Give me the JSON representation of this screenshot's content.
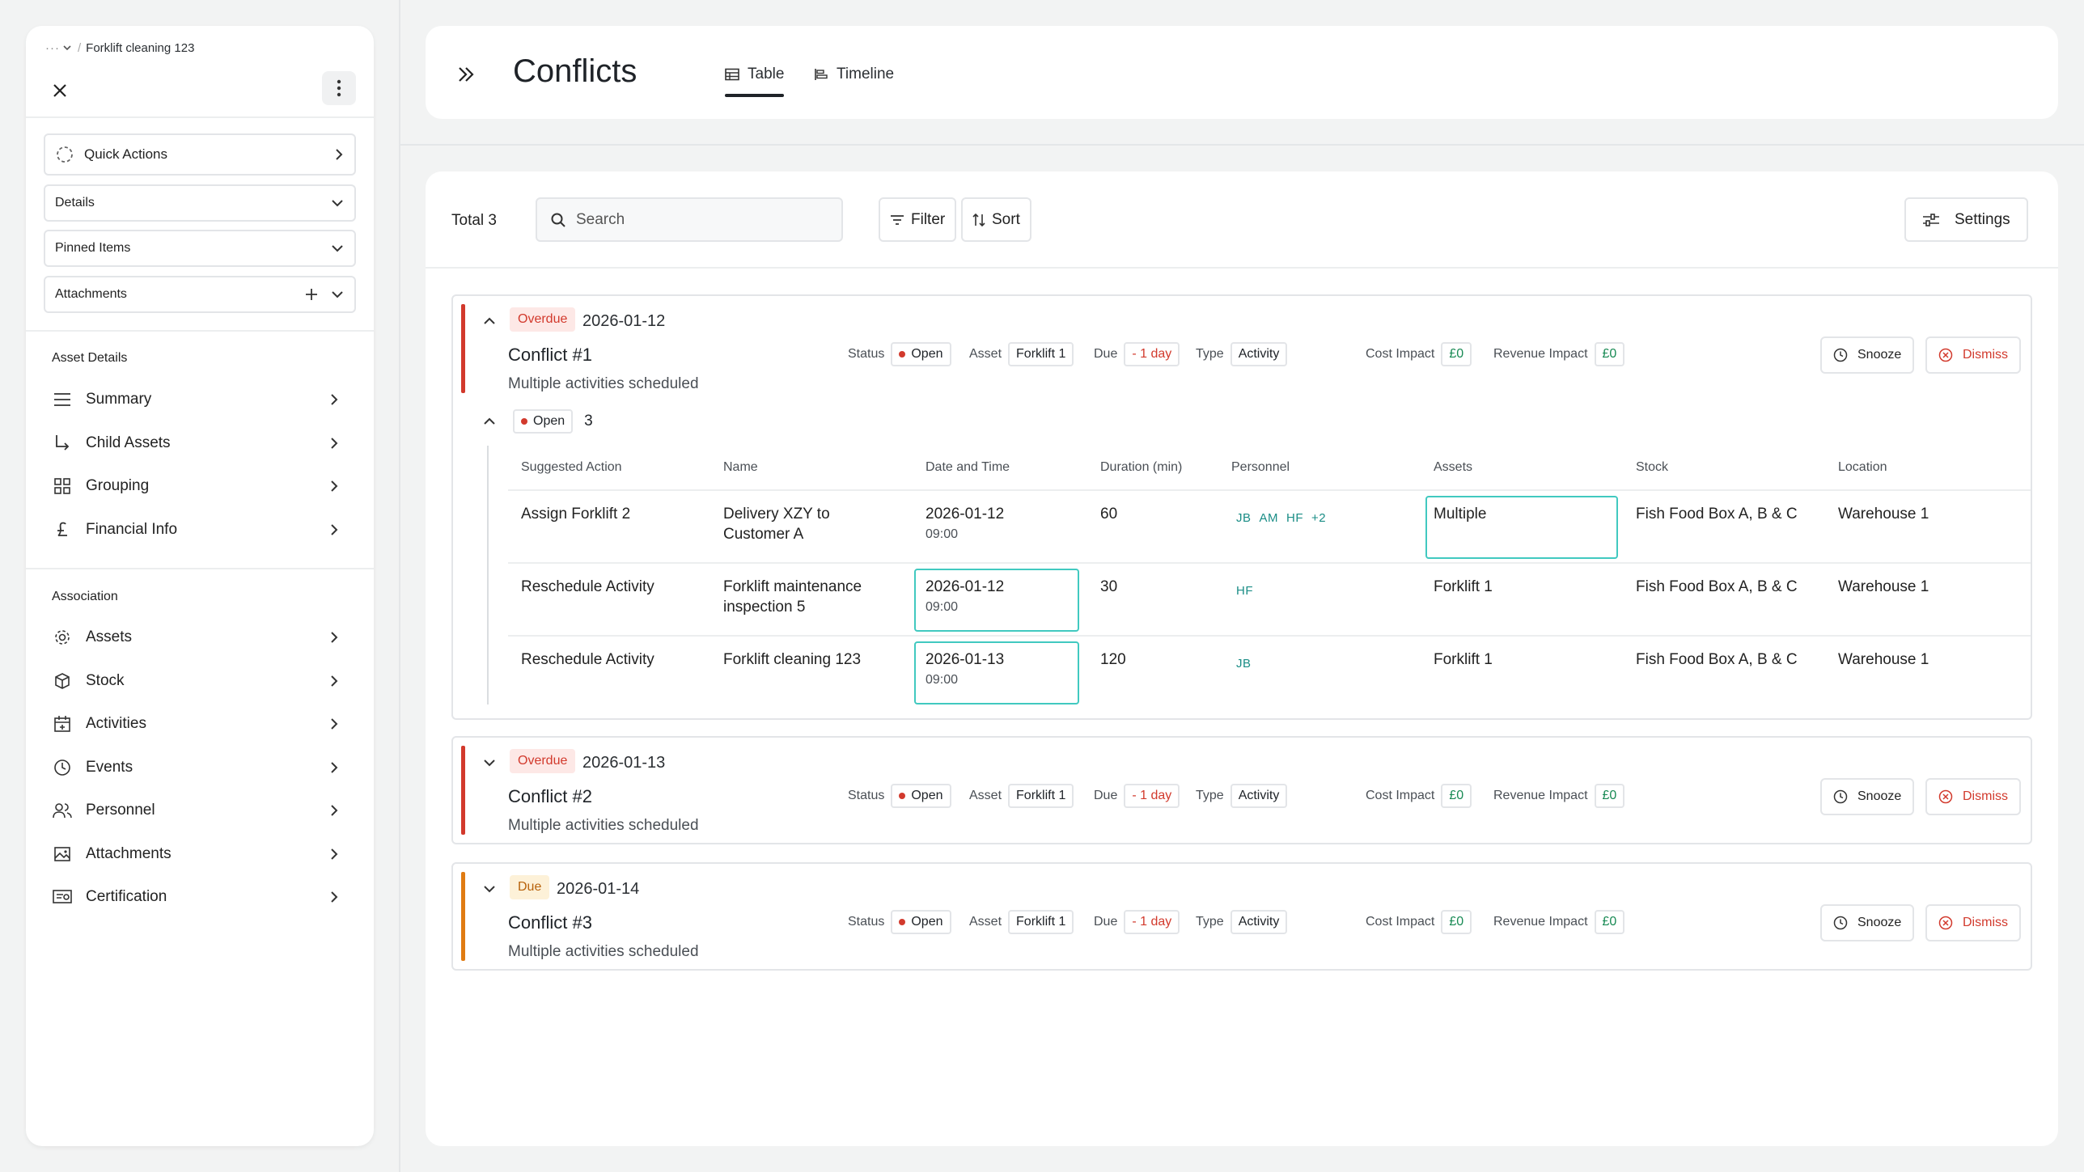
{
  "sidebar": {
    "breadcrumb": {
      "ellipsis": "···",
      "current": "Forklift cleaning 123"
    },
    "quick_actions": "Quick Actions",
    "details": "Details",
    "pinned_items": "Pinned Items",
    "attachments": "Attachments",
    "asset_details": {
      "heading": "Asset Details",
      "items": [
        {
          "label": "Summary",
          "icon": "list-icon"
        },
        {
          "label": "Child Assets",
          "icon": "child-arrow-icon"
        },
        {
          "label": "Grouping",
          "icon": "grid-icon"
        },
        {
          "label": "Financial Info",
          "icon": "pound-icon"
        }
      ]
    },
    "association": {
      "heading": "Association",
      "items": [
        {
          "label": "Assets",
          "icon": "gear-icon"
        },
        {
          "label": "Stock",
          "icon": "box-icon"
        },
        {
          "label": "Activities",
          "icon": "calendar-icon"
        },
        {
          "label": "Events",
          "icon": "clock-icon"
        },
        {
          "label": "Personnel",
          "icon": "people-icon"
        },
        {
          "label": "Attachments",
          "icon": "image-icon"
        },
        {
          "label": "Certification",
          "icon": "certificate-icon"
        }
      ]
    }
  },
  "header": {
    "title": "Conflicts",
    "tabs": [
      {
        "label": "Table",
        "active": true
      },
      {
        "label": "Timeline",
        "active": false
      }
    ]
  },
  "toolbar": {
    "total": "Total 3",
    "search_placeholder": "Search",
    "filter": "Filter",
    "sort": "Sort",
    "settings": "Settings"
  },
  "meta_labels": {
    "status": "Status",
    "asset": "Asset",
    "due": "Due",
    "type": "Type",
    "cost_impact": "Cost Impact",
    "revenue_impact": "Revenue Impact"
  },
  "actions": {
    "snooze": "Snooze",
    "dismiss": "Dismiss"
  },
  "colors": {
    "overdue": "#d2392c",
    "due": "#e07b12",
    "accent": "#41c9c0",
    "status_open": "#d23a2d"
  },
  "conflicts": [
    {
      "badge": "Overdue",
      "date": "2026-01-12",
      "title": "Conflict #1",
      "subtitle": "Multiple activities scheduled",
      "status": "Open",
      "asset": "Forklift 1",
      "due": "- 1 day",
      "type": "Activity",
      "cost": "£0",
      "revenue": "£0",
      "expanded": true,
      "group": {
        "status": "Open",
        "count": "3"
      },
      "columns": [
        "Suggested Action",
        "Name",
        "Date and Time",
        "Duration (min)",
        "Personnel",
        "Assets",
        "Stock",
        "Location"
      ],
      "rows": [
        {
          "action": "Assign Forklift 2",
          "name_1": "Delivery XZY to",
          "name_2": "Customer A",
          "date": "2026-01-12",
          "time": "09:00",
          "duration": "60",
          "personnel": [
            "JB",
            "AM",
            "HF",
            "+2"
          ],
          "assets": "Multiple",
          "stock": "Fish Food Box A, B & C",
          "location": "Warehouse 1"
        },
        {
          "action": "Reschedule Activity",
          "name_1": "Forklift maintenance",
          "name_2": "inspection 5",
          "date": "2026-01-12",
          "time": "09:00",
          "duration": "30",
          "personnel": [
            "HF"
          ],
          "assets": "Forklift 1",
          "stock": "Fish Food Box A, B & C",
          "location": "Warehouse 1"
        },
        {
          "action": "Reschedule Activity",
          "name_1": "Forklift cleaning 123",
          "name_2": "",
          "date": "2026-01-13",
          "time": "09:00",
          "duration": "120",
          "personnel": [
            "JB"
          ],
          "assets": "Forklift 1",
          "stock": "Fish Food Box A, B & C",
          "location": "Warehouse 1"
        }
      ]
    },
    {
      "badge": "Overdue",
      "date": "2026-01-13",
      "title": "Conflict #2",
      "subtitle": "Multiple activities scheduled",
      "status": "Open",
      "asset": "Forklift 1",
      "due": "- 1 day",
      "type": "Activity",
      "cost": "£0",
      "revenue": "£0",
      "expanded": false
    },
    {
      "badge": "Due",
      "date": "2026-01-14",
      "title": "Conflict #3",
      "subtitle": "Multiple activities scheduled",
      "status": "Open",
      "asset": "Forklift 1",
      "due": "- 1 day",
      "type": "Activity",
      "cost": "£0",
      "revenue": "£0",
      "expanded": false
    }
  ]
}
